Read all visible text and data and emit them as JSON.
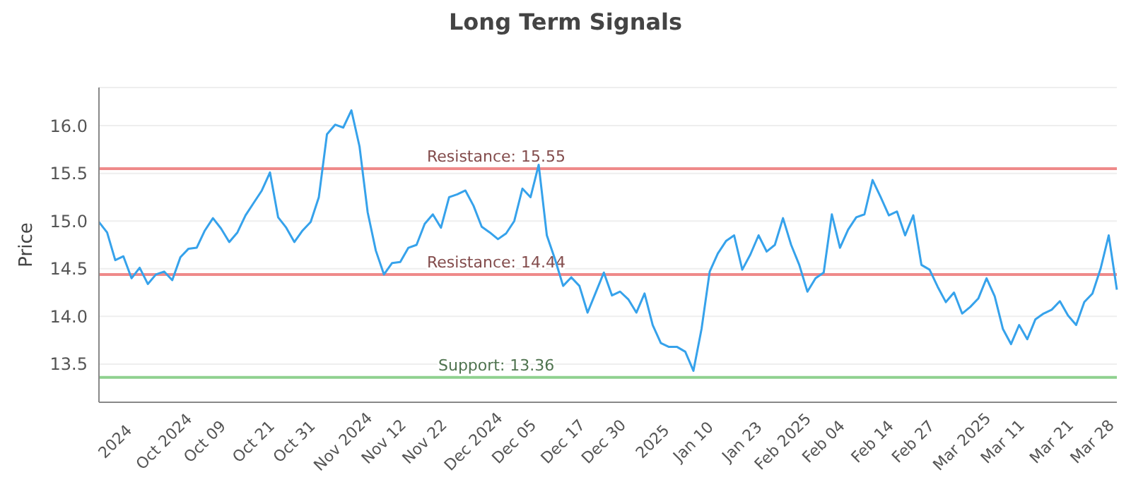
{
  "chart_data": {
    "type": "line",
    "title": "Long Term Signals",
    "ylabel": "Price",
    "categories": [
      null,
      null,
      "2024",
      null,
      null,
      null,
      null,
      null,
      "Oct 2024",
      null,
      null,
      null,
      null,
      "Oct 09",
      null,
      null,
      null,
      null,
      null,
      "Oct 21",
      null,
      null,
      null,
      null,
      "Oct 31",
      null,
      null,
      null,
      null,
      null,
      "Nov 2024",
      null,
      null,
      null,
      null,
      "Nov 12",
      null,
      null,
      null,
      null,
      "Nov 22",
      null,
      null,
      null,
      null,
      null,
      "Dec 2024",
      null,
      null,
      null,
      null,
      "Dec 05",
      null,
      null,
      null,
      null,
      null,
      "Dec 17",
      null,
      null,
      null,
      null,
      "Dec 30",
      null,
      null,
      null,
      null,
      null,
      "2025",
      null,
      null,
      null,
      null,
      "Jan 10",
      null,
      null,
      null,
      null,
      null,
      "Jan 23",
      null,
      null,
      null,
      null,
      "Feb 2025",
      null,
      null,
      null,
      null,
      "Feb 04",
      null,
      null,
      null,
      null,
      null,
      "Feb 14",
      null,
      null,
      null,
      null,
      "Feb 27",
      null,
      null,
      null,
      null,
      null,
      "Mar 2025",
      null,
      null,
      null,
      null,
      "Mar 11",
      null,
      null,
      null,
      null,
      null,
      "Mar 21",
      null,
      null,
      null,
      null,
      "Mar 28",
      null,
      null,
      null
    ],
    "series": [
      {
        "color": "#36a2eb",
        "values": [
          14.99,
          14.88,
          14.59,
          14.63,
          14.4,
          14.51,
          14.34,
          14.44,
          14.47,
          14.38,
          14.62,
          14.71,
          14.72,
          14.9,
          15.03,
          14.92,
          14.78,
          14.88,
          15.06,
          15.19,
          15.32,
          15.51,
          15.04,
          14.93,
          14.78,
          14.9,
          14.99,
          15.25,
          15.91,
          16.01,
          15.98,
          16.16,
          15.78,
          15.09,
          14.69,
          14.44,
          14.56,
          14.57,
          14.72,
          14.75,
          14.97,
          15.07,
          14.93,
          15.25,
          15.28,
          15.32,
          15.16,
          14.94,
          14.88,
          14.81,
          14.87,
          15.0,
          15.34,
          15.25,
          15.59,
          14.85,
          14.6,
          14.32,
          14.41,
          14.32,
          14.04,
          14.25,
          14.46,
          14.22,
          14.26,
          14.18,
          14.04,
          14.24,
          13.91,
          13.72,
          13.68,
          13.68,
          13.63,
          13.43,
          13.87,
          14.47,
          14.66,
          14.79,
          14.85,
          14.49,
          14.65,
          14.85,
          14.68,
          14.75,
          15.03,
          14.75,
          14.54,
          14.26,
          14.4,
          14.46,
          15.07,
          14.72,
          14.91,
          15.04,
          15.07,
          15.43,
          15.25,
          15.06,
          15.1,
          14.85,
          15.06,
          14.54,
          14.49,
          14.31,
          14.15,
          14.25,
          14.03,
          14.1,
          14.19,
          14.4,
          14.21,
          13.87,
          13.71,
          13.91,
          13.76,
          13.97,
          14.03,
          14.07,
          14.16,
          14.01,
          13.91,
          14.15,
          14.24,
          14.5,
          14.85,
          14.28
        ]
      }
    ],
    "ylim": [
      13.1,
      16.4
    ],
    "yticks": [
      13.5,
      {
        "value": 14,
        "label": "14.0"
      },
      14.5,
      {
        "value": 15,
        "label": "15.0"
      },
      15.5,
      {
        "value": 16,
        "label": "16.0"
      }
    ],
    "grid": "y",
    "marker": "none",
    "line_style": "solid",
    "legend": false,
    "ref_lines": [
      {
        "axis": "y",
        "value": 15.55,
        "label": "Resistance: 15.55",
        "color": "#ef8a8a"
      },
      {
        "axis": "y",
        "value": 14.44,
        "label": "Resistance: 14.44",
        "color": "#ef8a8a"
      },
      {
        "axis": "y",
        "value": 13.36,
        "label": "Support: 13.36",
        "color": "#8fd18f"
      }
    ]
  }
}
